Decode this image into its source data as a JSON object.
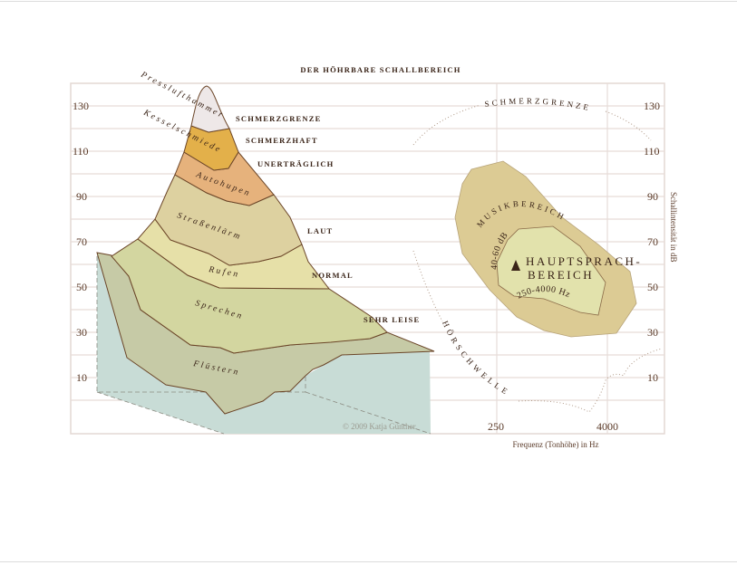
{
  "title": "DER HÖHRBARE SCHALLBEREICH",
  "y_ticks_left": [
    "130",
    "110",
    "90",
    "70",
    "50",
    "30",
    "10"
  ],
  "y_ticks_right": [
    "130",
    "110",
    "90",
    "70",
    "50",
    "30",
    "10"
  ],
  "x_ticks": [
    "250",
    "4000"
  ],
  "x_label": "Frequenz (Tonhöhe) in Hz",
  "y_label": "Schallintensität in dB",
  "levels": [
    "SCHMERZGRENZE",
    "SCHMERZHAFT",
    "UNERTRÄGLICH",
    "LAUT",
    "NORMAL",
    "SEHR LEISE"
  ],
  "sources": [
    "Presslufthammer",
    "Kesselschmiede",
    "Autohupen",
    "Straßenlärm",
    "Rufen",
    "Sprechen",
    "Flüstern"
  ],
  "right": {
    "pain_threshold": "SCHMERZGRENZE",
    "hearing_threshold": "HÖRSCHWELLE",
    "music_range": "MUSIKBEREICH",
    "speech_range_line1": "HAUPTSPRACH-",
    "speech_range_line2": "BEREICH",
    "speech_db": "40-60 dB",
    "speech_hz": "250-4000 Hz"
  },
  "copyright": "© 2009 Katja Günther",
  "colors": {
    "presslufthammer": "#eee8e8",
    "kesselschmiede": "#e3b04a",
    "autohupen": "#e6b27c",
    "strassenlaerm": "#ddd1a0",
    "rufen": "#e6e0a8",
    "sprechen": "#d3d6a0",
    "fluestern": "#c6caa6",
    "floor": "#c8dcd6",
    "music": "#dccb94",
    "speech": "#e2e2ac"
  }
}
